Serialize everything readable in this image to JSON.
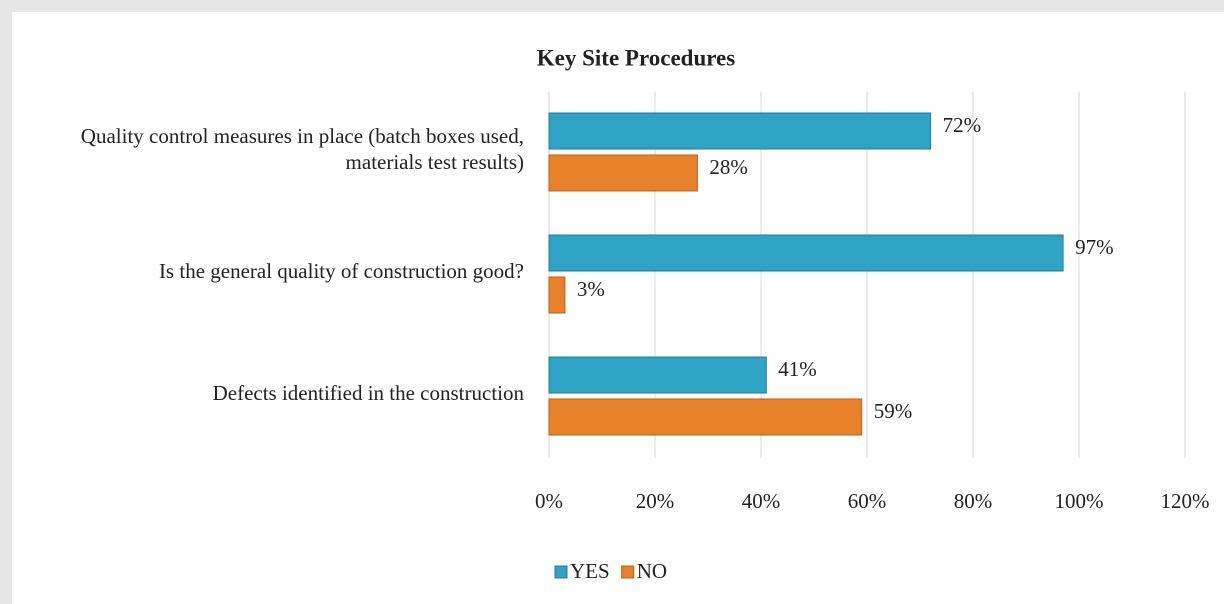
{
  "chart_data": {
    "type": "hbar",
    "title": "Key Site Procedures",
    "categories": [
      "Quality control measures in place (batch boxes used, materials test results)",
      "Is the general quality of construction good?",
      "Defects identified in the construction"
    ],
    "series": [
      {
        "name": "YES",
        "color": "#2ea3c4",
        "values": [
          72,
          97,
          41
        ],
        "value_labels": [
          "72%",
          "97%",
          "41%"
        ]
      },
      {
        "name": "NO",
        "color": "#e8822a",
        "values": [
          28,
          3,
          59
        ],
        "value_labels": [
          "28%",
          "3%",
          "59%"
        ]
      }
    ],
    "xlim": [
      0,
      120
    ],
    "xticks": [
      {
        "value": 0,
        "label": "0%"
      },
      {
        "value": 20,
        "label": "20%"
      },
      {
        "value": 40,
        "label": "40%"
      },
      {
        "value": 60,
        "label": "60%"
      },
      {
        "value": 80,
        "label": "80%"
      },
      {
        "value": 100,
        "label": "100%"
      },
      {
        "value": 120,
        "label": "120%"
      }
    ],
    "grid": true,
    "legend": "bottom"
  }
}
